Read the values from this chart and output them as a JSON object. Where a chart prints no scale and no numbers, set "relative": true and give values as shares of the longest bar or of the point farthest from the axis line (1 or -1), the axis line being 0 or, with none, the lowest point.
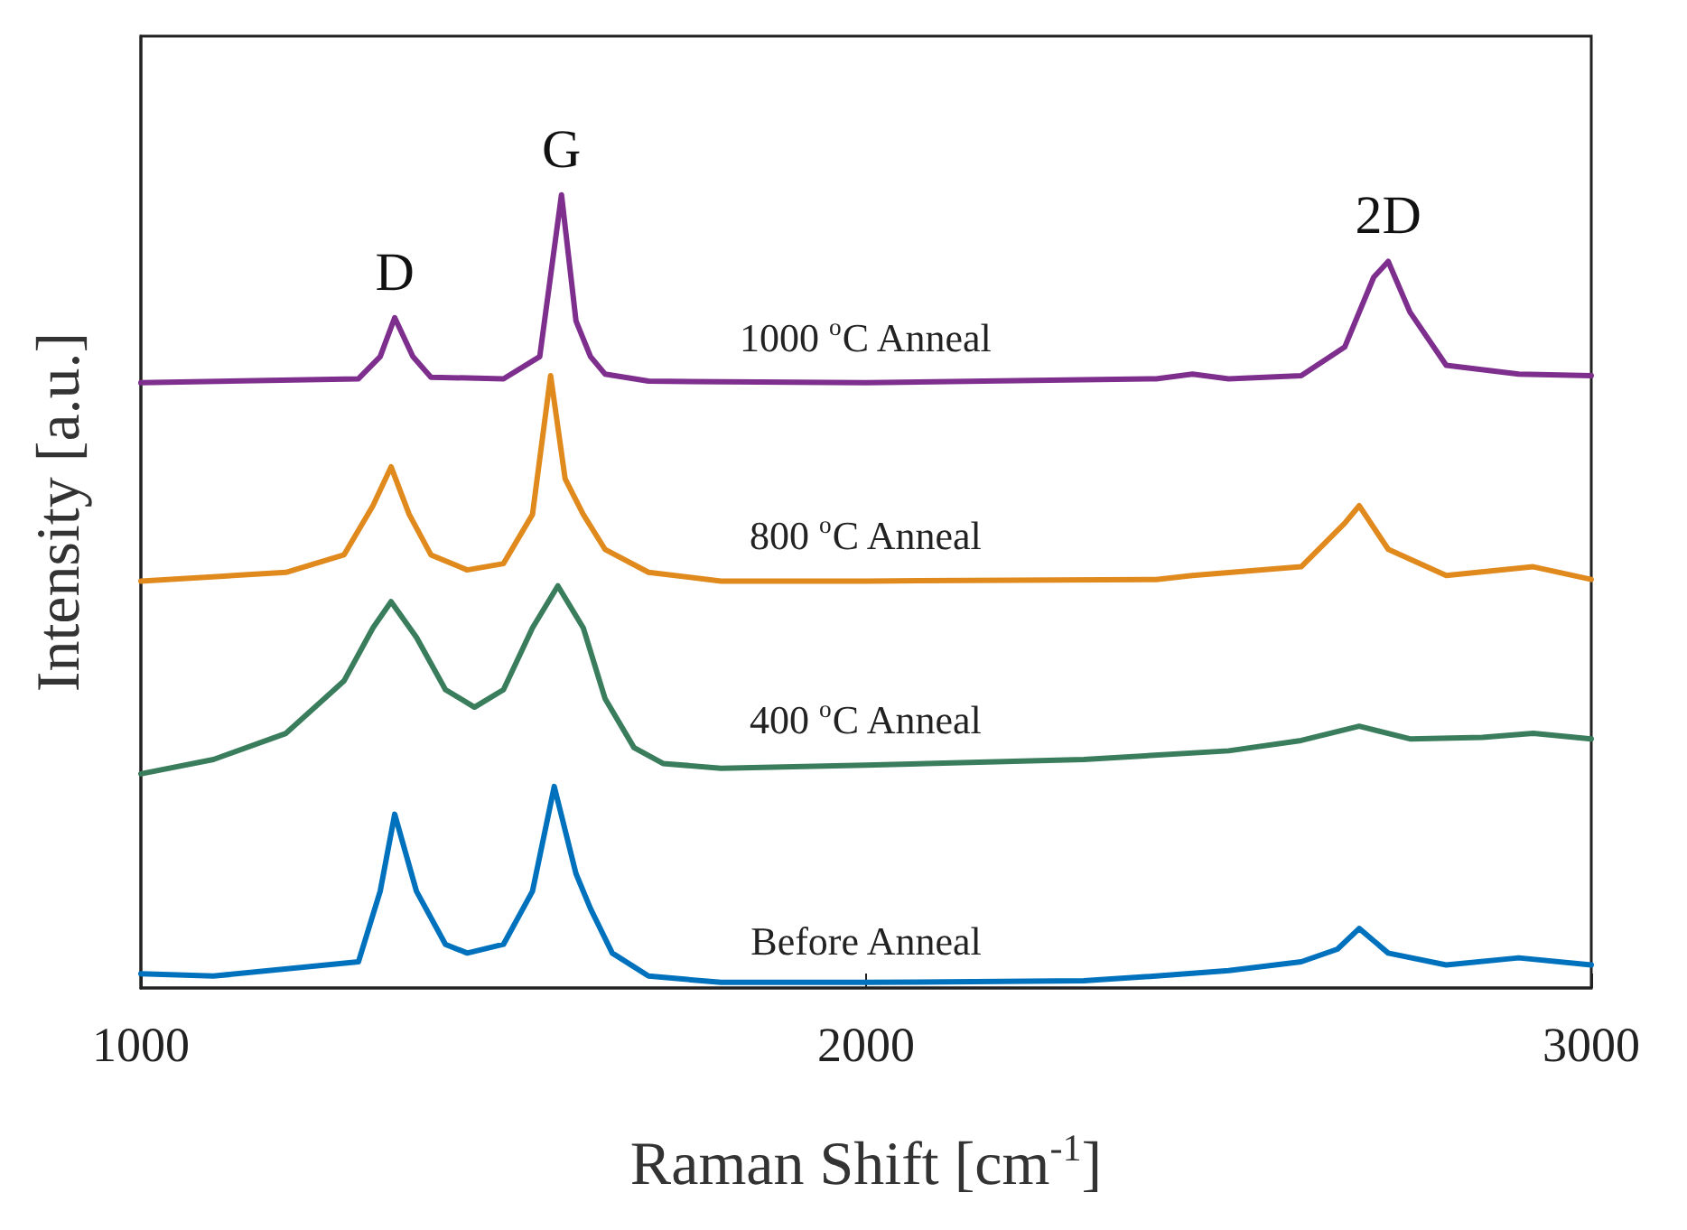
{
  "chart_data": {
    "type": "line",
    "relative": true,
    "xlabel": "Raman Shift [cm$^{-1}$]",
    "ylabel": "Intensity [a.u.]",
    "xlim": [
      1000,
      3000
    ],
    "xticks": [
      1000,
      2000,
      3000
    ],
    "grid": false,
    "legend": false,
    "marker": "none",
    "line_style": "solid",
    "tick_labels": "x",
    "annotations": [
      {
        "text": "D",
        "x": 1350,
        "y": 0.845
      },
      {
        "text": "G",
        "x": 1580,
        "y": 1
      },
      {
        "text": "2D",
        "x": 2720,
        "y": 0.916
      }
    ],
    "series": [
      {
        "name": "Before Anneal",
        "color": "#0072bd",
        "x": [
          1000,
          1100,
          1300,
          1330,
          1350,
          1380,
          1420,
          1450,
          1500,
          1540,
          1570,
          1600,
          1620,
          1650,
          1700,
          1800,
          2000,
          2300,
          2400,
          2500,
          2600,
          2650,
          2680,
          2720,
          2800,
          2900,
          3000
        ],
        "values": [
          0.018,
          0.015,
          0.033,
          0.122,
          0.219,
          0.122,
          0.055,
          0.044,
          0.055,
          0.122,
          0.254,
          0.144,
          0.1,
          0.044,
          0.015,
          0.007,
          0.007,
          0.009,
          0.015,
          0.022,
          0.033,
          0.049,
          0.075,
          0.044,
          0.029,
          0.038,
          0.029
        ]
      },
      {
        "name": "400 $^{o}$C Anneal",
        "color": "#3a7d5c",
        "x": [
          1000,
          1100,
          1200,
          1280,
          1320,
          1345,
          1380,
          1420,
          1460,
          1500,
          1540,
          1575,
          1610,
          1640,
          1680,
          1720,
          1800,
          2000,
          2300,
          2500,
          2600,
          2680,
          2750,
          2850,
          2920,
          3000
        ],
        "values": [
          0.27,
          0.288,
          0.321,
          0.387,
          0.454,
          0.487,
          0.442,
          0.376,
          0.354,
          0.376,
          0.454,
          0.507,
          0.454,
          0.365,
          0.303,
          0.283,
          0.277,
          0.281,
          0.288,
          0.299,
          0.312,
          0.33,
          0.314,
          0.316,
          0.321,
          0.314
        ]
      },
      {
        "name": "800 $^{o}$C Anneal",
        "color": "#e08a1e",
        "x": [
          1000,
          1200,
          1280,
          1320,
          1345,
          1370,
          1400,
          1450,
          1500,
          1540,
          1565,
          1585,
          1610,
          1640,
          1700,
          1800,
          2000,
          2400,
          2450,
          2600,
          2660,
          2680,
          2720,
          2800,
          2920,
          3000
        ],
        "values": [
          0.513,
          0.524,
          0.546,
          0.608,
          0.657,
          0.597,
          0.546,
          0.527,
          0.535,
          0.597,
          0.772,
          0.642,
          0.597,
          0.553,
          0.524,
          0.513,
          0.513,
          0.515,
          0.52,
          0.531,
          0.586,
          0.608,
          0.553,
          0.52,
          0.531,
          0.515
        ]
      },
      {
        "name": "1000 $^{o}$C Anneal",
        "color": "#7e2f8e",
        "x": [
          1000,
          1300,
          1330,
          1350,
          1375,
          1400,
          1500,
          1550,
          1580,
          1600,
          1620,
          1640,
          1700,
          2000,
          2400,
          2450,
          2500,
          2600,
          2660,
          2700,
          2720,
          2750,
          2800,
          2900,
          3000
        ],
        "values": [
          0.763,
          0.768,
          0.796,
          0.845,
          0.796,
          0.77,
          0.768,
          0.796,
          1,
          0.841,
          0.796,
          0.774,
          0.765,
          0.763,
          0.768,
          0.774,
          0.768,
          0.772,
          0.808,
          0.896,
          0.916,
          0.852,
          0.785,
          0.774,
          0.772
        ]
      }
    ]
  }
}
